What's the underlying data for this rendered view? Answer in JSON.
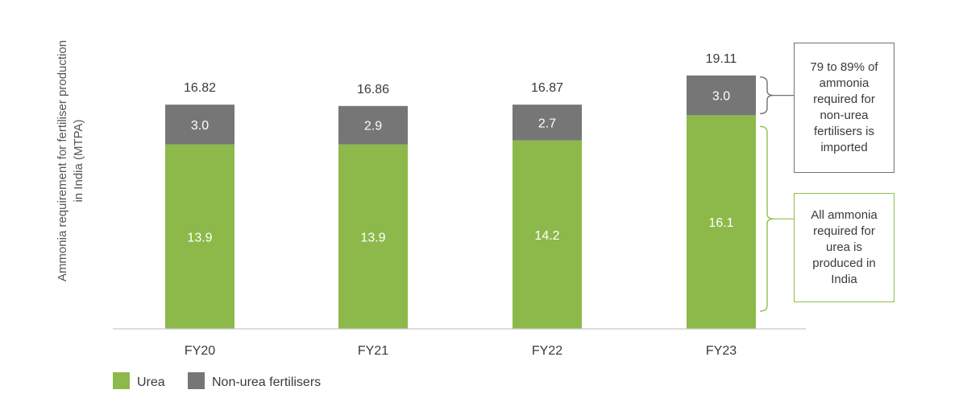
{
  "chart_data": {
    "type": "bar",
    "stacked": true,
    "ylabel": "Ammonia requirement for fertiliser production in India (MTPA)",
    "categories": [
      "FY20",
      "FY21",
      "FY22",
      "FY23"
    ],
    "series": [
      {
        "name": "Urea",
        "color": "#8db94a",
        "values": [
          13.9,
          13.9,
          14.2,
          16.1
        ]
      },
      {
        "name": "Non-urea fertilisers",
        "color": "#767676",
        "values": [
          3.0,
          2.9,
          2.7,
          3.0
        ]
      }
    ],
    "totals": [
      "16.82",
      "16.86",
      "16.87",
      "19.11"
    ],
    "ylim": [
      0,
      22
    ],
    "grid": false,
    "legend_position": "bottom-left",
    "annotations": [
      {
        "target": "Non-urea fertilisers",
        "text": "79 to 89% of ammonia required for non-urea fertilisers  is imported",
        "border_color": "#707070"
      },
      {
        "target": "Urea",
        "text": "All ammonia required for urea is produced in India",
        "border_color": "#8fbf4a"
      }
    ]
  }
}
